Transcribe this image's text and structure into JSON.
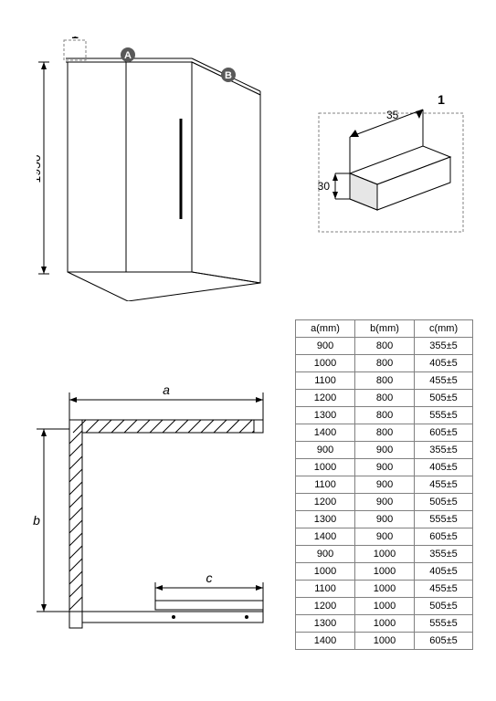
{
  "iso": {
    "height_label": "1950",
    "height_fontsize": 14,
    "callout_label": "1",
    "badge_a": "A",
    "badge_b": "B",
    "badge_fill": "#595959",
    "line_color": "#000000",
    "background": "#ffffff"
  },
  "detail": {
    "label": "1",
    "dim_w": "35",
    "dim_h": "30",
    "dash_color": "#808080",
    "line_color": "#000000"
  },
  "plan": {
    "label_a": "a",
    "label_b": "b",
    "label_c": "c",
    "label_fontsize": 14,
    "line_color": "#000000"
  },
  "table": {
    "columns": [
      "a(mm)",
      "b(mm)",
      "c(mm)"
    ],
    "rows": [
      [
        "900",
        "800",
        "355±5"
      ],
      [
        "1000",
        "800",
        "405±5"
      ],
      [
        "1100",
        "800",
        "455±5"
      ],
      [
        "1200",
        "800",
        "505±5"
      ],
      [
        "1300",
        "800",
        "555±5"
      ],
      [
        "1400",
        "800",
        "605±5"
      ],
      [
        "900",
        "900",
        "355±5"
      ],
      [
        "1000",
        "900",
        "405±5"
      ],
      [
        "1100",
        "900",
        "455±5"
      ],
      [
        "1200",
        "900",
        "505±5"
      ],
      [
        "1300",
        "900",
        "555±5"
      ],
      [
        "1400",
        "900",
        "605±5"
      ],
      [
        "900",
        "1000",
        "355±5"
      ],
      [
        "1000",
        "1000",
        "405±5"
      ],
      [
        "1100",
        "1000",
        "455±5"
      ],
      [
        "1200",
        "1000",
        "505±5"
      ],
      [
        "1300",
        "1000",
        "555±5"
      ],
      [
        "1400",
        "1000",
        "605±5"
      ]
    ],
    "border_color": "#808080",
    "fontsize": 11
  }
}
